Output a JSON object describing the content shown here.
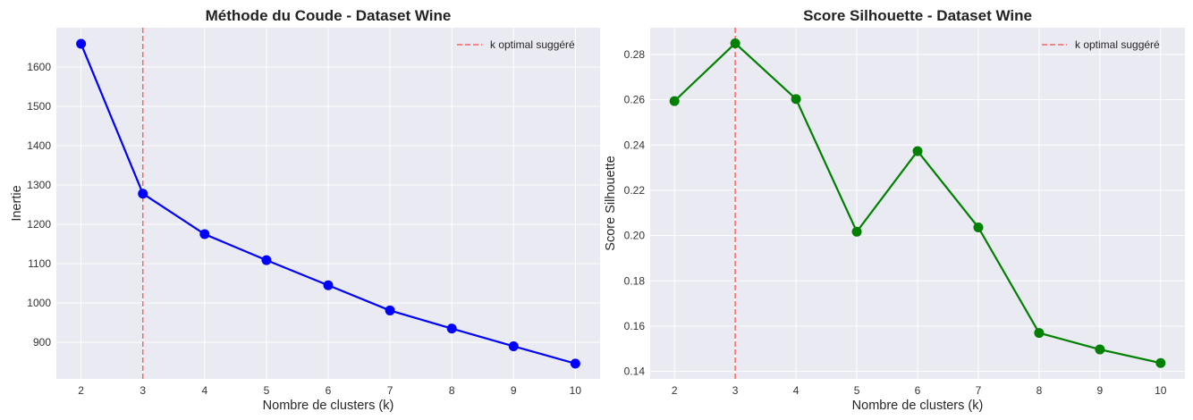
{
  "chart_data": [
    {
      "type": "line",
      "title": "Méthode du Coude - Dataset Wine",
      "xlabel": "Nombre de clusters (k)",
      "ylabel": "Inertie",
      "x": [
        2,
        3,
        4,
        5,
        6,
        7,
        8,
        9,
        10
      ],
      "series": [
        {
          "values": [
            1659,
            1278,
            1175,
            1109,
            1045,
            981,
            935,
            890,
            846
          ],
          "color": "#0000ff"
        }
      ],
      "xlim": [
        1.6,
        10.4
      ],
      "ylim": [
        807,
        1700
      ],
      "xticks": [
        2,
        3,
        4,
        5,
        6,
        7,
        8,
        9,
        10
      ],
      "yticks": [
        900,
        1000,
        1100,
        1200,
        1300,
        1400,
        1500,
        1600
      ],
      "vline": {
        "x": 3,
        "color": "#ff5555",
        "style": "dashed",
        "label": "k optimal suggéré"
      },
      "legend": {
        "position": "top-right",
        "entries": [
          "k optimal suggéré"
        ]
      },
      "grid": true
    },
    {
      "type": "line",
      "title": "Score Silhouette - Dataset Wine",
      "xlabel": "Nombre de clusters (k)",
      "ylabel": "Score Silhouette",
      "x": [
        2,
        3,
        4,
        5,
        6,
        7,
        8,
        9,
        10
      ],
      "series": [
        {
          "values": [
            0.2594,
            0.2849,
            0.2603,
            0.2017,
            0.2373,
            0.2036,
            0.157,
            0.1497,
            0.1437
          ],
          "color": "#008000"
        }
      ],
      "xlim": [
        1.6,
        10.4
      ],
      "ylim": [
        0.1367,
        0.2918
      ],
      "xticks": [
        2,
        3,
        4,
        5,
        6,
        7,
        8,
        9,
        10
      ],
      "yticks": [
        0.14,
        0.16,
        0.18,
        0.2,
        0.22,
        0.24,
        0.26,
        0.28
      ],
      "ytick_labels": [
        "0.14",
        "0.16",
        "0.18",
        "0.20",
        "0.22",
        "0.24",
        "0.26",
        "0.28"
      ],
      "vline": {
        "x": 3,
        "color": "#ff5555",
        "style": "dashed",
        "label": "k optimal suggéré"
      },
      "legend": {
        "position": "top-right",
        "entries": [
          "k optimal suggéré"
        ]
      },
      "grid": true
    }
  ]
}
